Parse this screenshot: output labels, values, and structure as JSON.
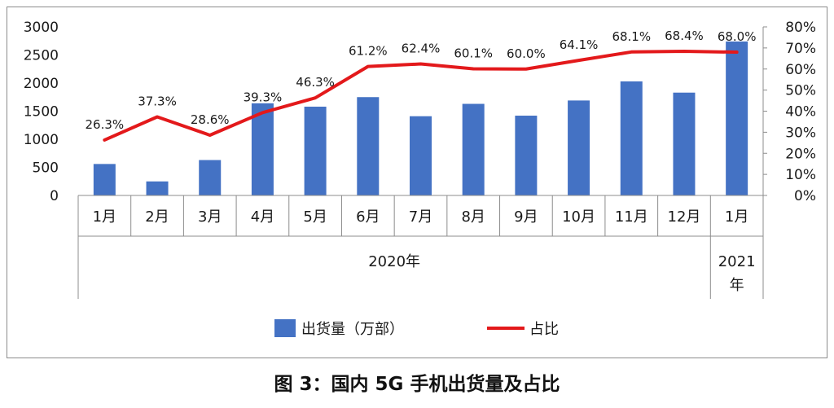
{
  "caption": "图 3：国内 5G 手机出货量及占比",
  "colors": {
    "bar": "#4472c4",
    "line": "#e3191b",
    "axis": "#8c8c8c",
    "text": "#1a1a1a"
  },
  "chart_data": {
    "type": "bar+line",
    "categories": [
      "1月",
      "2月",
      "3月",
      "4月",
      "5月",
      "6月",
      "7月",
      "8月",
      "9月",
      "10月",
      "11月",
      "12月",
      "1月"
    ],
    "groups": [
      {
        "label": "2020年",
        "count": 12
      },
      {
        "label": "2021年",
        "count": 1
      }
    ],
    "series": [
      {
        "name": "出货量（万部）",
        "type": "bar",
        "axis": "left",
        "values": [
          560,
          250,
          630,
          1640,
          1580,
          1750,
          1410,
          1630,
          1420,
          1690,
          2030,
          1830,
          2740
        ]
      },
      {
        "name": "占比",
        "type": "line",
        "axis": "right",
        "values": [
          26.3,
          37.3,
          28.6,
          39.3,
          46.3,
          61.2,
          62.4,
          60.1,
          60.0,
          64.1,
          68.1,
          68.4,
          68.0
        ],
        "labels": [
          "26.3%",
          "37.3%",
          "28.6%",
          "39.3%",
          "46.3%",
          "61.2%",
          "62.4%",
          "60.1%",
          "60.0%",
          "64.1%",
          "68.1%",
          "68.4%",
          "68.0%"
        ]
      }
    ],
    "y_left": {
      "min": 0,
      "max": 3000,
      "ticks": [
        "0",
        "500",
        "1000",
        "1500",
        "2000",
        "2500",
        "3000"
      ]
    },
    "y_right": {
      "min": 0,
      "max": 80,
      "ticks": [
        "0%",
        "10%",
        "20%",
        "30%",
        "40%",
        "50%",
        "60%",
        "70%",
        "80%"
      ]
    },
    "grid": false,
    "legend_position": "bottom"
  }
}
